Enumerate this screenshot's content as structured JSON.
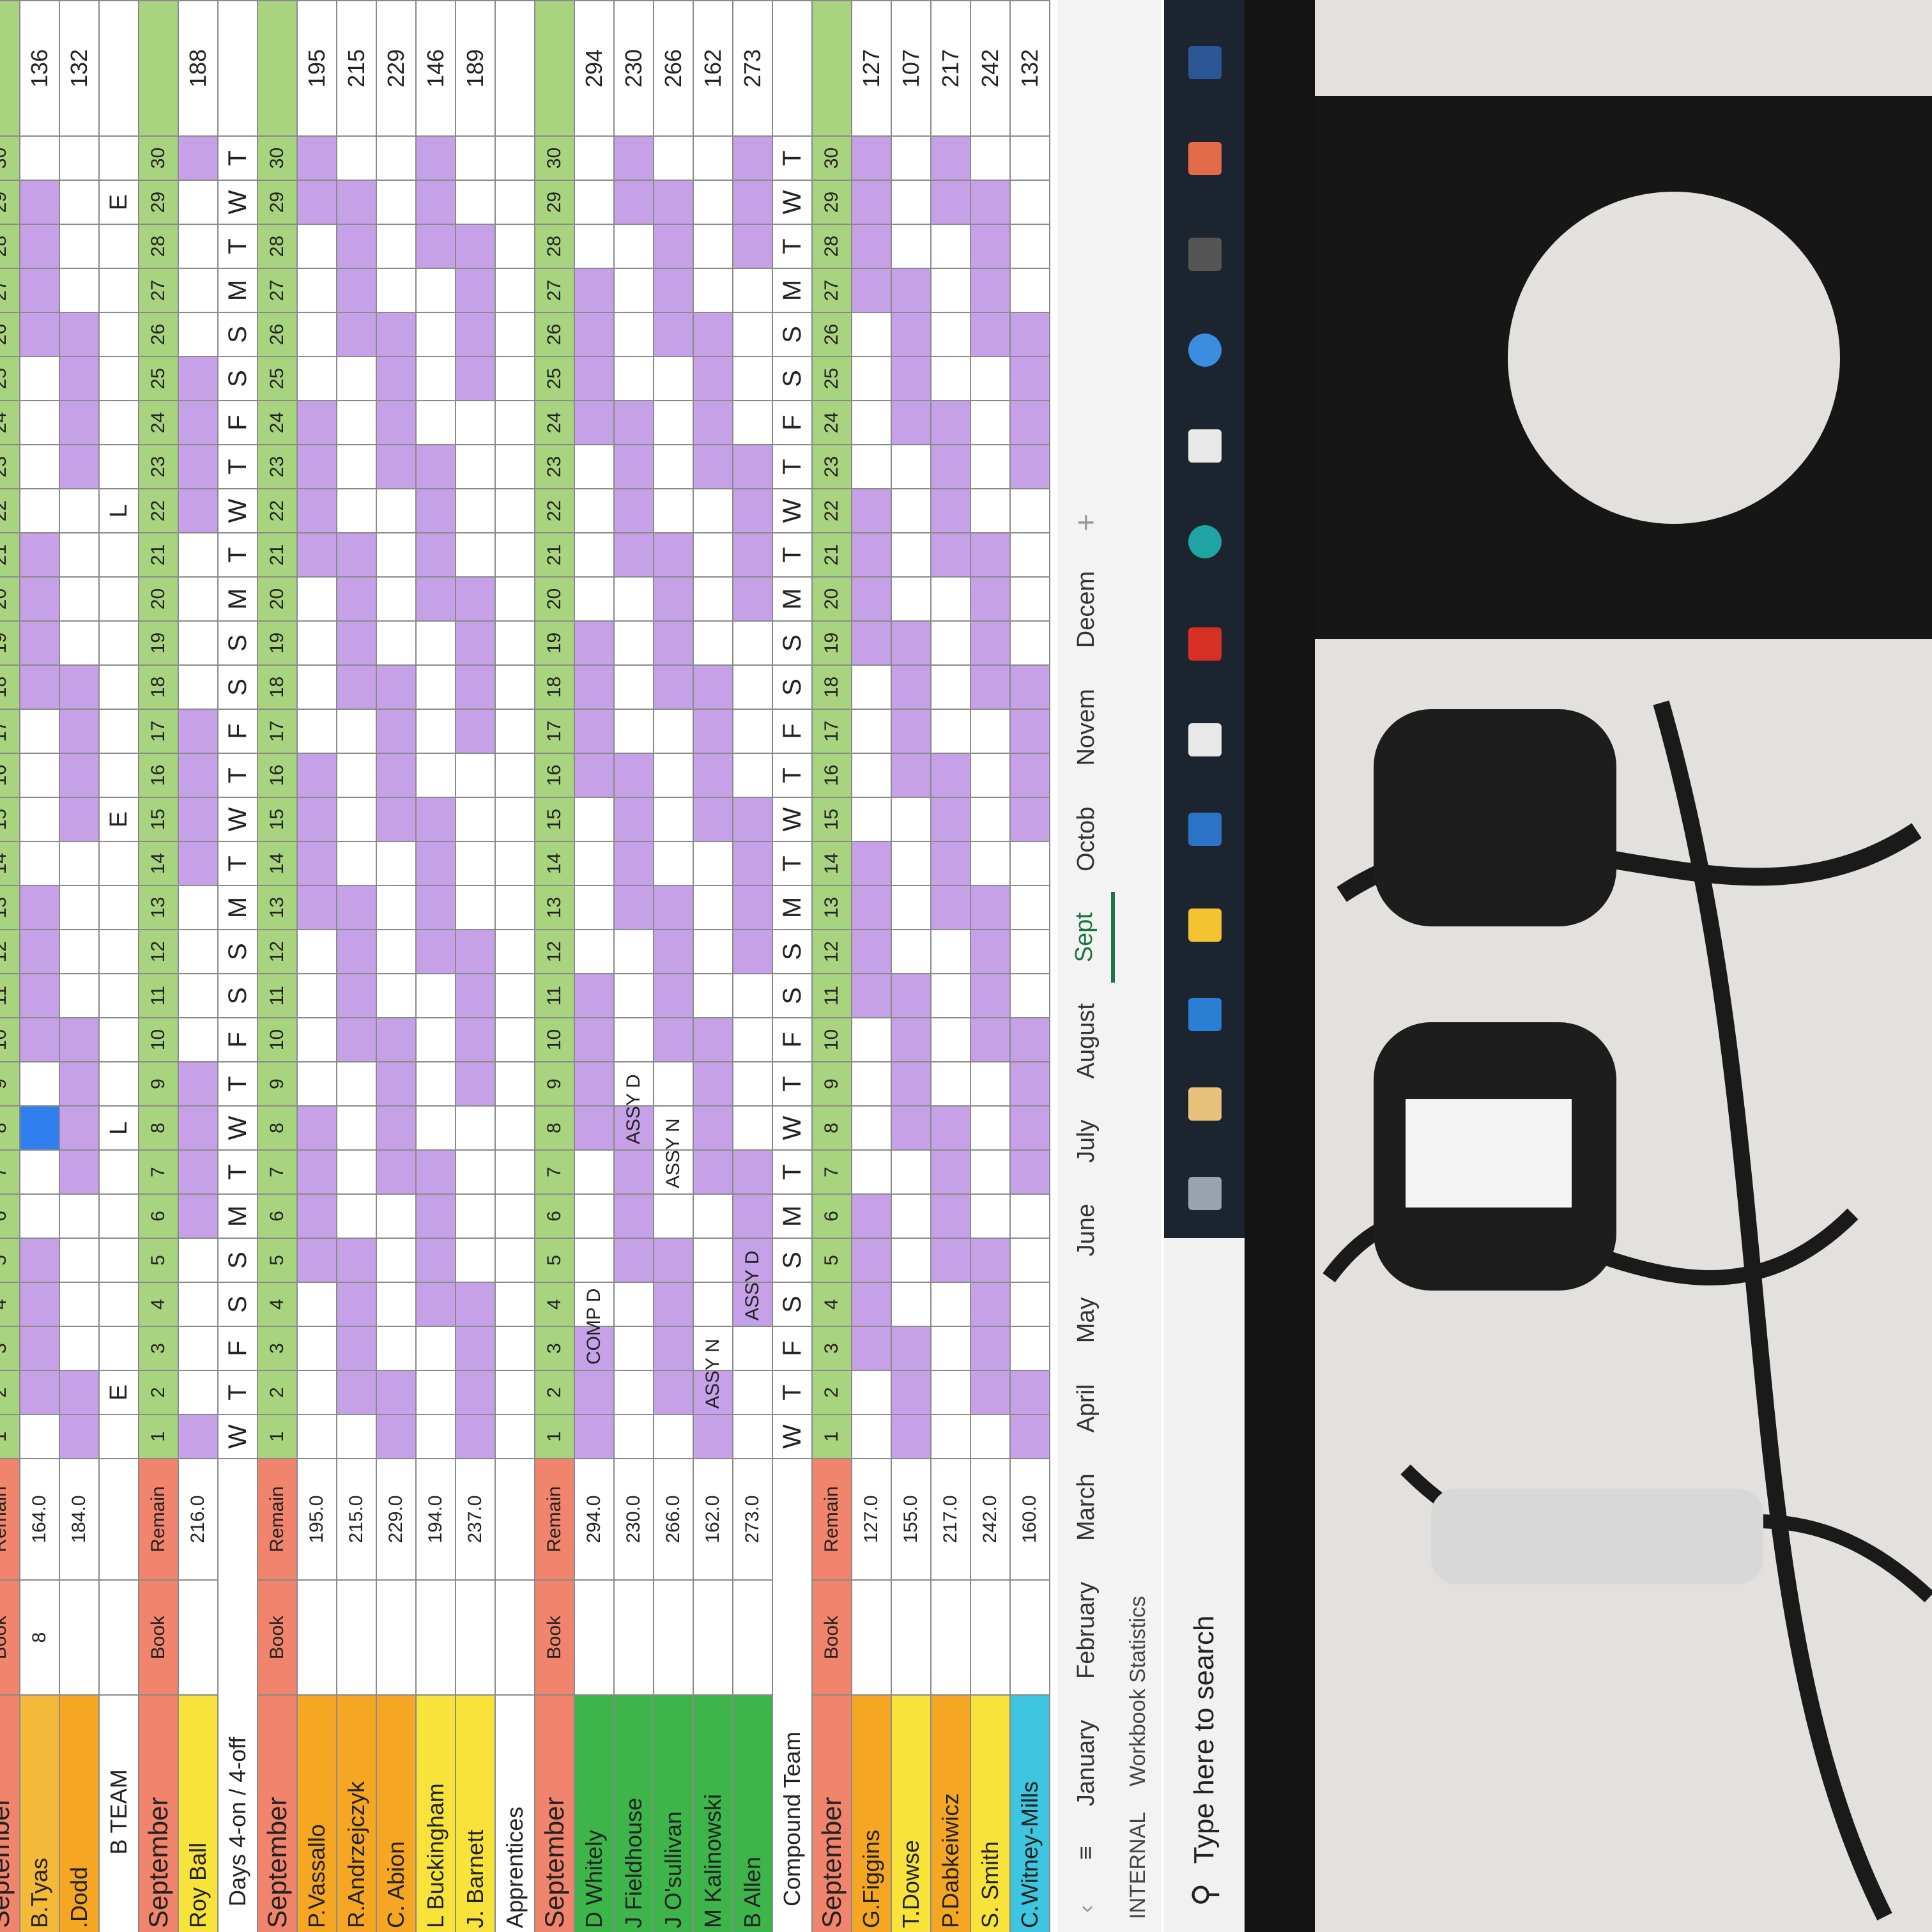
{
  "sheet": {
    "days": [
      1,
      2,
      3,
      4,
      5,
      6,
      7,
      8,
      9,
      10,
      11,
      12,
      13,
      14,
      15,
      16,
      17,
      18,
      19,
      20,
      21,
      22,
      23,
      24,
      25,
      26,
      27,
      28,
      29,
      30
    ],
    "weekdays": [
      "W",
      "T",
      "F",
      "S",
      "S",
      "M",
      "T",
      "W",
      "T",
      "F",
      "S",
      "S",
      "M",
      "T",
      "W",
      "T",
      "F",
      "S",
      "S",
      "M",
      "T",
      "W",
      "T",
      "F",
      "S",
      "S",
      "M",
      "T",
      "W",
      "T"
    ],
    "rows": [
      {
        "type": "header",
        "label": "September",
        "book": "Book",
        "remain": "Remain"
      },
      {
        "type": "person",
        "name": "B.Tyas",
        "color": "#f5b93a",
        "book": "8",
        "remain": "164.0",
        "total": "136"
      },
      {
        "type": "person",
        "name": ".Dodd",
        "color": "#f5a623",
        "remain": "184.0",
        "total": "132"
      },
      {
        "type": "section",
        "label": "B TEAM",
        "cells": [
          null,
          "E",
          null,
          null,
          null,
          null,
          null,
          "L",
          null,
          null,
          null,
          null,
          null,
          null,
          "E",
          null,
          null,
          null,
          null,
          null,
          null,
          "L",
          null,
          null,
          null,
          null,
          null,
          null,
          "E",
          null
        ]
      },
      {
        "type": "header",
        "label": "September",
        "book": "Book",
        "remain": "Remain"
      },
      {
        "type": "person",
        "name": "Roy Ball",
        "color": "#f7e33a",
        "remain": "216.0",
        "total": "188"
      },
      {
        "type": "weekday",
        "label": "Days 4-on / 4-off"
      },
      {
        "type": "header",
        "label": "September",
        "book": "Book",
        "remain": "Remain"
      },
      {
        "type": "person",
        "name": "P.Vassallo",
        "color": "#f5a623",
        "remain": "195.0",
        "total": "195"
      },
      {
        "type": "person",
        "name": "R.Andrzejczyk",
        "color": "#f5a623",
        "remain": "215.0",
        "total": "215"
      },
      {
        "type": "person",
        "name": "C. Abion",
        "color": "#f5a623",
        "remain": "229.0",
        "total": "229"
      },
      {
        "type": "person",
        "name": "L Buckingham",
        "color": "#f7e33a",
        "remain": "194.0",
        "total": "146"
      },
      {
        "type": "person",
        "name": "J. Barnett",
        "color": "#f7e33a",
        "remain": "237.0",
        "total": "189"
      },
      {
        "type": "section",
        "label": "Apprentices"
      },
      {
        "type": "header",
        "label": "September",
        "book": "Book",
        "remain": "Remain"
      },
      {
        "type": "person",
        "name": "D Whitely",
        "color": "#3db54a",
        "remain": "294.0",
        "total": "294",
        "cells": [
          null,
          null,
          "COMP D",
          null,
          null,
          null,
          null,
          null,
          null,
          null,
          null,
          null,
          null,
          null,
          null,
          null,
          null,
          null,
          null,
          null,
          null,
          null,
          null,
          null,
          null,
          null,
          null,
          null,
          null,
          null
        ]
      },
      {
        "type": "person",
        "name": "J Fieldhouse",
        "color": "#3db54a",
        "remain": "230.0",
        "total": "230",
        "cells": [
          null,
          null,
          null,
          null,
          null,
          null,
          null,
          "ASSY D",
          null,
          null,
          null,
          null,
          null,
          null,
          null,
          null,
          null,
          null,
          null,
          null,
          null,
          null,
          null,
          null,
          null,
          null,
          null,
          null,
          null,
          null
        ]
      },
      {
        "type": "person",
        "name": "J O'sullivan",
        "color": "#3db54a",
        "remain": "266.0",
        "total": "266",
        "cells": [
          null,
          null,
          null,
          null,
          null,
          null,
          "ASSY N",
          null,
          null,
          null,
          null,
          null,
          null,
          null,
          null,
          null,
          null,
          null,
          null,
          null,
          null,
          null,
          null,
          null,
          null,
          null,
          null,
          null,
          null,
          null
        ]
      },
      {
        "type": "person",
        "name": "M Kalinowski",
        "color": "#3db54a",
        "remain": "162.0",
        "total": "162",
        "cells": [
          null,
          "ASSY N",
          null,
          null,
          null,
          null,
          null,
          null,
          null,
          null,
          null,
          null,
          null,
          null,
          null,
          null,
          null,
          null,
          null,
          null,
          null,
          null,
          null,
          null,
          null,
          null,
          null,
          null,
          null,
          null
        ]
      },
      {
        "type": "person",
        "name": "B Allen",
        "color": "#3db54a",
        "remain": "273.0",
        "total": "273",
        "cells": [
          null,
          null,
          null,
          "ASSY D",
          null,
          null,
          null,
          null,
          null,
          null,
          null,
          null,
          null,
          null,
          null,
          null,
          null,
          null,
          null,
          null,
          null,
          null,
          null,
          null,
          null,
          null,
          null,
          null,
          null,
          null
        ]
      },
      {
        "type": "weekday",
        "label": "Compound Team"
      },
      {
        "type": "header",
        "label": "September",
        "book": "Book",
        "remain": "Remain"
      },
      {
        "type": "person",
        "name": "G.Figgins",
        "color": "#f5a623",
        "remain": "127.0",
        "total": "127"
      },
      {
        "type": "person",
        "name": "T.Dowse",
        "color": "#f7e33a",
        "remain": "155.0",
        "total": "107"
      },
      {
        "type": "person",
        "name": "P.Dabkeiwicz",
        "color": "#f5a623",
        "remain": "217.0",
        "total": "217"
      },
      {
        "type": "person",
        "name": "S. Smith",
        "color": "#f7e33a",
        "remain": "242.0",
        "total": "242"
      },
      {
        "type": "person",
        "name": "C.Witney-Mills",
        "color": "#3ec6e0",
        "remain": "160.0",
        "total": "132"
      }
    ],
    "tabs": [
      "January",
      "February",
      "March",
      "April",
      "May",
      "June",
      "July",
      "August",
      "Sept",
      "Octob",
      "Novem",
      "Decem"
    ],
    "active_tab": "Sept",
    "status": {
      "label": "INTERNAL",
      "stats": "Workbook Statistics"
    },
    "taskbar": {
      "search": "Type here to search"
    }
  }
}
